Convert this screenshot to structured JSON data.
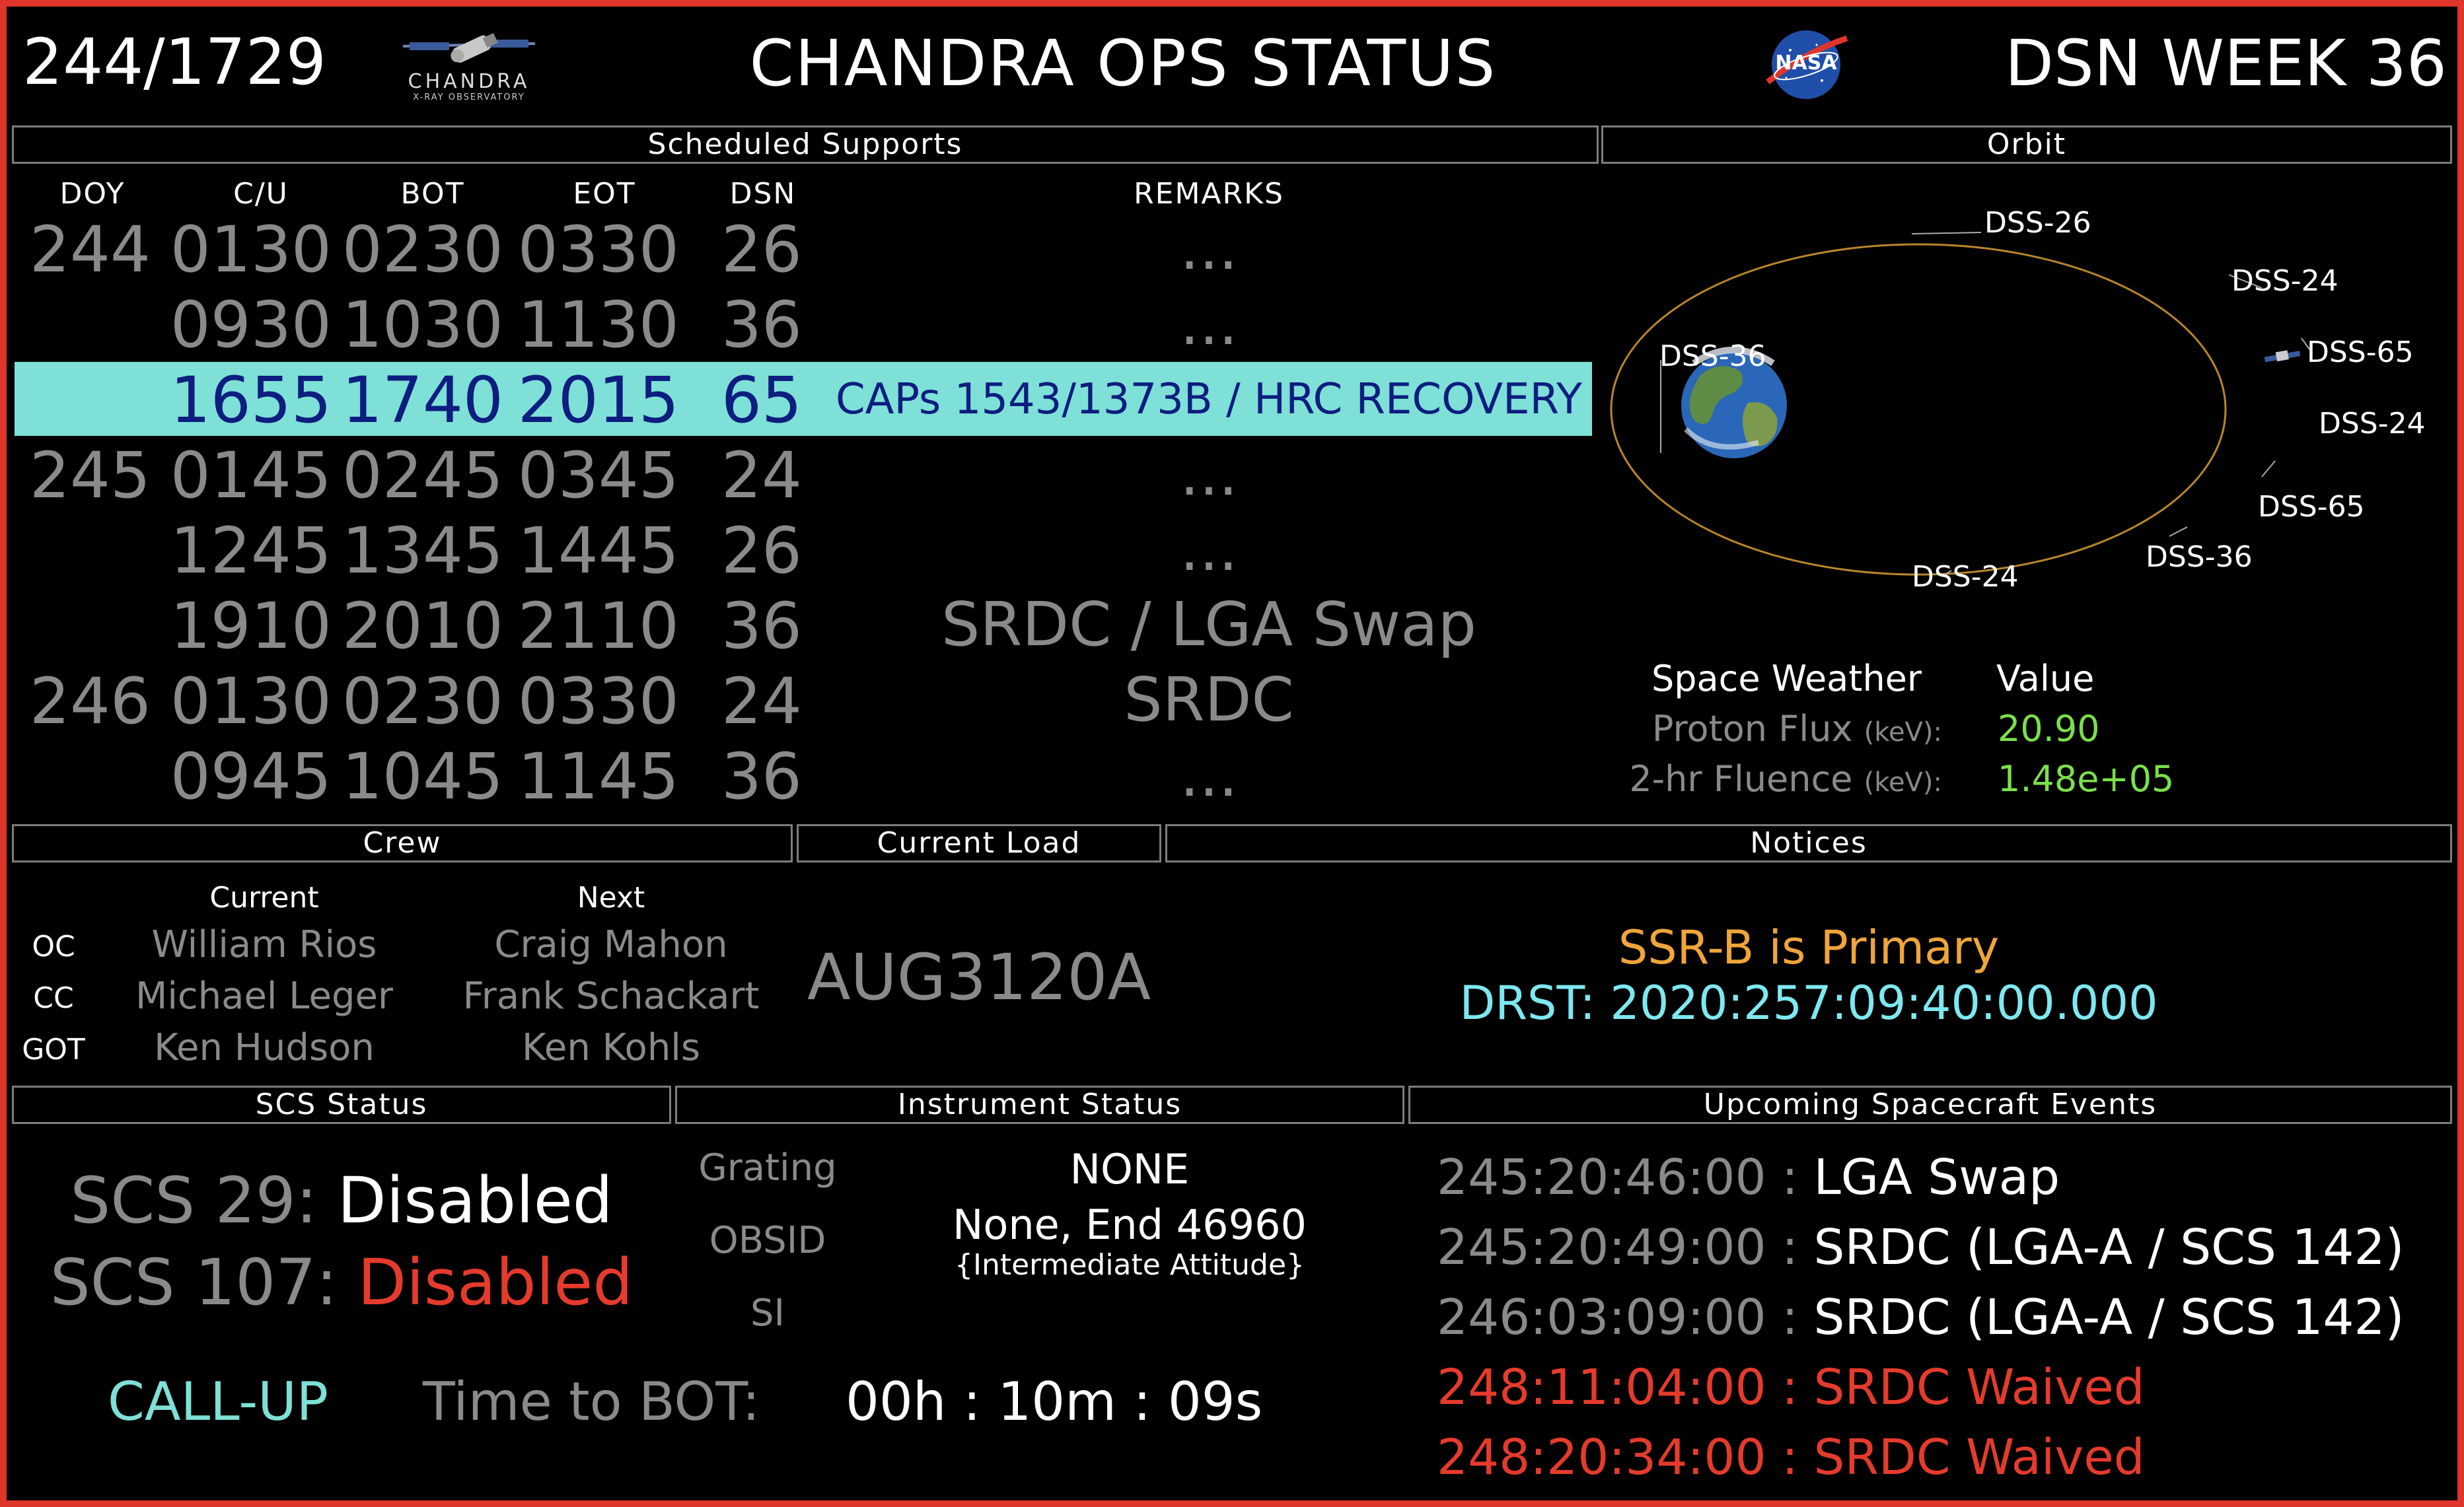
{
  "header": {
    "time": "244/1729",
    "logo_line1": "CHANDRA",
    "logo_line2": "X-RAY OBSERVATORY",
    "title": "CHANDRA OPS STATUS",
    "nasa_label": "NASA",
    "week": "DSN WEEK 36"
  },
  "sections": {
    "scheduled": "Scheduled Supports",
    "orbit": "Orbit",
    "crew": "Crew",
    "current_load": "Current Load",
    "notices": "Notices",
    "scs_status": "SCS Status",
    "instrument_status": "Instrument Status",
    "upcoming_events": "Upcoming Spacecraft Events"
  },
  "schedule": {
    "columns": [
      "DOY",
      "C/U",
      "BOT",
      "EOT",
      "DSN",
      "REMARKS"
    ],
    "rows": [
      {
        "doy": "244",
        "cu": "0130",
        "bot": "0230",
        "eot": "0330",
        "dsn": "26",
        "remarks": "..."
      },
      {
        "doy": "",
        "cu": "0930",
        "bot": "1030",
        "eot": "1130",
        "dsn": "36",
        "remarks": "..."
      },
      {
        "doy": "",
        "cu": "1655",
        "bot": "1740",
        "eot": "2015",
        "dsn": "65",
        "remarks": "CAPs 1543/1373B / HRC RECOVERY"
      },
      {
        "doy": "245",
        "cu": "0145",
        "bot": "0245",
        "eot": "0345",
        "dsn": "24",
        "remarks": "..."
      },
      {
        "doy": "",
        "cu": "1245",
        "bot": "1345",
        "eot": "1445",
        "dsn": "26",
        "remarks": "..."
      },
      {
        "doy": "",
        "cu": "1910",
        "bot": "2010",
        "eot": "2110",
        "dsn": "36",
        "remarks": "SRDC / LGA Swap"
      },
      {
        "doy": "246",
        "cu": "0130",
        "bot": "0230",
        "eot": "0330",
        "dsn": "24",
        "remarks": "SRDC"
      },
      {
        "doy": "",
        "cu": "0945",
        "bot": "1045",
        "eot": "1145",
        "dsn": "36",
        "remarks": "..."
      }
    ],
    "highlight_color": "#7ee0d6"
  },
  "orbit": {
    "labels": [
      "DSS-26",
      "DSS-24",
      "DSS-36",
      "DSS-65",
      "DSS-24",
      "DSS-65",
      "DSS-36",
      "DSS-24"
    ],
    "orbit_color": "#b8862b"
  },
  "space_weather": {
    "heading": "Space Weather",
    "value_heading": "Value",
    "proton_label": "Proton Flux",
    "proton_unit": "(keV):",
    "proton_value": "20.90",
    "fluence_label": "2-hr Fluence",
    "fluence_unit": "(keV):",
    "fluence_value": "1.48e+05",
    "value_color": "#7be04a"
  },
  "crew": {
    "current_heading": "Current",
    "next_heading": "Next",
    "rows": [
      {
        "role": "OC",
        "current": "William Rios",
        "next": "Craig Mahon"
      },
      {
        "role": "CC",
        "current": "Michael Leger",
        "next": "Frank Schackart"
      },
      {
        "role": "GOT",
        "current": "Ken Hudson",
        "next": "Ken Kohls"
      }
    ]
  },
  "current_load": "AUG3120A",
  "notices": {
    "line1": "SSR-B is Primary",
    "line2": "DRST: 2020:257:09:40:00.000",
    "line1_color": "#f0a53a",
    "line2_color": "#7ee8f0"
  },
  "scs": {
    "scs29_label": "SCS 29:",
    "scs29_value": "Disabled",
    "scs107_label": "SCS 107:",
    "scs107_value": "Disabled",
    "callup": "CALL-UP",
    "time_to_bot_label": "Time to BOT:",
    "time_to_bot_value": "00h : 10m : 09s",
    "callup_color": "#7ee0d6",
    "disabled_red": "#e53b2c"
  },
  "instrument": {
    "grating_label": "Grating",
    "grating_value": "NONE",
    "obsid_label": "OBSID",
    "obsid_value": "None, End 46960",
    "obsid_note": "{Intermediate Attitude}",
    "si_label": "SI",
    "si_value": ""
  },
  "events": [
    {
      "time": "245:20:46:00",
      "sep": ":",
      "desc": "LGA Swap",
      "red": false
    },
    {
      "time": "245:20:49:00",
      "sep": ":",
      "desc": "SRDC (LGA-A / SCS 142)",
      "red": false
    },
    {
      "time": "246:03:09:00",
      "sep": ":",
      "desc": "SRDC (LGA-A / SCS 142)",
      "red": false
    },
    {
      "time": "248:11:04:00",
      "sep": ":",
      "desc": "SRDC Waived",
      "red": true
    },
    {
      "time": "248:20:34:00",
      "sep": ":",
      "desc": "SRDC Waived",
      "red": true
    }
  ],
  "icons": [
    "chandra-satellite-icon",
    "nasa-logo-icon",
    "earth-icon",
    "spacecraft-icon"
  ]
}
